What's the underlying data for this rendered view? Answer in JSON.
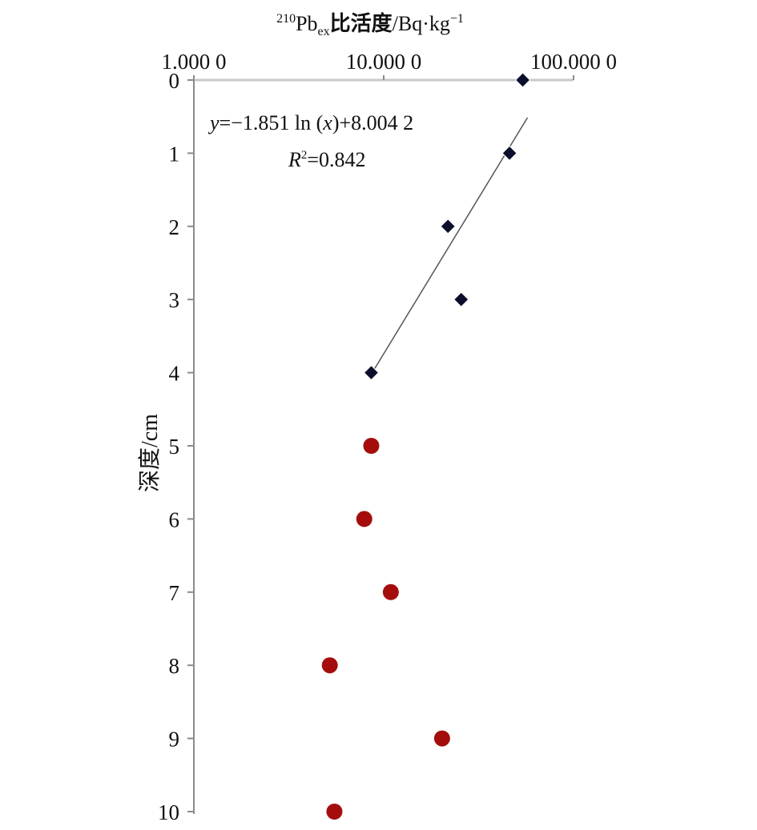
{
  "chart_data": {
    "type": "scatter",
    "title": "",
    "xlabel": {
      "iso_mass": "210",
      "element": "Pb",
      "subscript": "ex",
      "label_cn": "比活度",
      "unit_main": "/Bq·kg",
      "unit_exp": "−1"
    },
    "ylabel": "深度/cm",
    "x_scale": "log",
    "x_axis_position": "top",
    "xlim": [
      1,
      100
    ],
    "ylim": [
      0,
      10
    ],
    "y_inverted": true,
    "x_tick_labels": [
      "1.000 0",
      "10.000 0",
      "100.000 0"
    ],
    "x_tick_values": [
      1,
      10,
      100
    ],
    "y_tick_values": [
      0,
      1,
      2,
      3,
      4,
      5,
      6,
      7,
      8,
      9,
      10
    ],
    "y_tick_labels": [
      "0",
      "1",
      "2",
      "3",
      "4",
      "5",
      "6",
      "7",
      "8",
      "9",
      "10"
    ],
    "grid": false,
    "series": [
      {
        "marker": "diamond",
        "color": "#0b0f2b",
        "points": [
          {
            "x": 54.0,
            "y": 0
          },
          {
            "x": 46.0,
            "y": 1
          },
          {
            "x": 21.8,
            "y": 2
          },
          {
            "x": 25.6,
            "y": 3
          },
          {
            "x": 8.6,
            "y": 4
          }
        ]
      },
      {
        "marker": "circle",
        "color": "#a50d0d",
        "points": [
          {
            "x": 8.6,
            "y": 5
          },
          {
            "x": 7.9,
            "y": 6
          },
          {
            "x": 10.9,
            "y": 7
          },
          {
            "x": 5.2,
            "y": 8
          },
          {
            "x": 20.3,
            "y": 9
          },
          {
            "x": 5.5,
            "y": 10
          }
        ]
      }
    ],
    "trendline": {
      "form": "y = -1.851 ln(x) + 8.0042",
      "a": -1.851,
      "b": 8.0042,
      "x_from": 8.9,
      "x_to": 57.2,
      "color": "#555555"
    },
    "annotations": {
      "equation": {
        "y_var": "y",
        "eq_rest": "=−1.851 ln (",
        "x_var": "x",
        "tail": ")+8.004 2"
      },
      "r2": {
        "r_var": "R",
        "r_sup": "2",
        "r_rest": "=0.842"
      }
    }
  }
}
